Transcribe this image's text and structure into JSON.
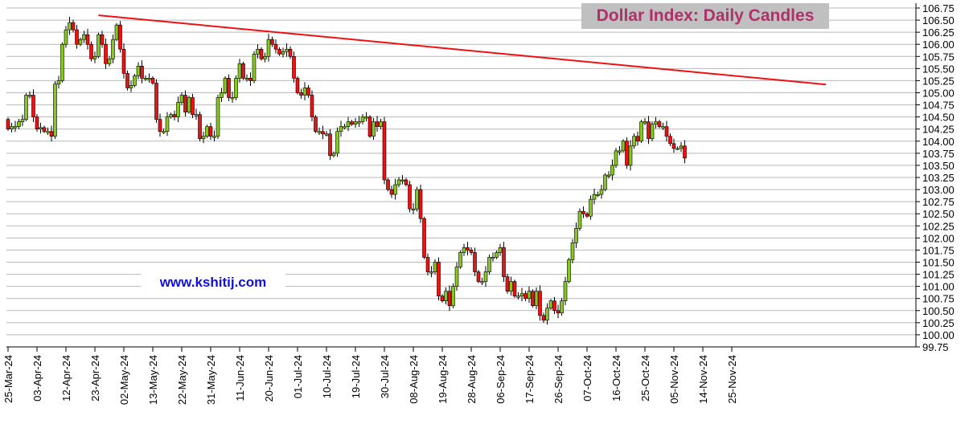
{
  "chart_data": {
    "type": "candlestick",
    "title": "Dollar Index: Daily Candles",
    "watermark": "www.kshitij.com",
    "x_tick_labels": [
      "25-Mar-24",
      "03-Apr-24",
      "12-Apr-24",
      "23-Apr-24",
      "02-May-24",
      "13-May-24",
      "22-May-24",
      "31-May-24",
      "11-Jun-24",
      "20-Jun-24",
      "01-Jul-24",
      "10-Jul-24",
      "19-Jul-24",
      "30-Jul-24",
      "08-Aug-24",
      "19-Aug-24",
      "28-Aug-24",
      "06-Sep-24",
      "17-Sep-24",
      "26-Sep-24",
      "07-Oct-24",
      "16-Oct-24",
      "25-Oct-24",
      "05-Nov-24",
      "14-Nov-24",
      "25-Nov-24"
    ],
    "y_tick_labels": [
      "106.75",
      "106.50",
      "106.25",
      "106.00",
      "105.75",
      "105.50",
      "105.25",
      "105.00",
      "104.75",
      "104.50",
      "104.25",
      "104.00",
      "103.75",
      "103.50",
      "103.25",
      "103.00",
      "102.75",
      "102.50",
      "102.25",
      "102.00",
      "101.75",
      "101.50",
      "101.25",
      "101.00",
      "100.75",
      "100.50",
      "100.25",
      "100.00",
      "99.75"
    ],
    "ylim": [
      99.75,
      106.75
    ],
    "y_scale": "linear",
    "grid": "horizontal",
    "y_axis_side": "right",
    "colors": {
      "up": "#86c91e",
      "down": "#ee1111",
      "trendline": "#ee1111",
      "grid": "#b9b9b9",
      "title_bg": "#c0c0c0",
      "title_text": "#b0306a",
      "watermark_text": "#1010d8"
    },
    "trendline": {
      "start_index": 25,
      "start_value": 106.6,
      "end_index": 226,
      "end_value": 105.17
    },
    "closes": [
      104.25,
      104.3,
      104.3,
      104.4,
      104.45,
      104.95,
      104.95,
      104.5,
      104.25,
      104.28,
      104.2,
      104.2,
      104.1,
      105.18,
      105.25,
      106.0,
      106.3,
      106.45,
      106.3,
      106.0,
      106.1,
      106.2,
      106.0,
      105.7,
      105.75,
      106.2,
      106.0,
      105.6,
      105.7,
      106.1,
      106.4,
      105.9,
      105.4,
      105.1,
      105.15,
      105.35,
      105.55,
      105.3,
      105.3,
      105.3,
      105.2,
      104.45,
      104.2,
      104.2,
      104.5,
      104.55,
      104.5,
      104.8,
      104.95,
      104.6,
      104.9,
      104.55,
      104.55,
      104.05,
      104.1,
      104.3,
      104.1,
      104.1,
      104.9,
      105.0,
      105.3,
      104.9,
      104.9,
      105.3,
      105.6,
      105.3,
      105.3,
      105.25,
      105.8,
      105.9,
      105.7,
      105.75,
      106.1,
      106.0,
      105.9,
      105.8,
      105.85,
      105.9,
      105.75,
      105.3,
      105.0,
      104.95,
      105.1,
      104.95,
      104.5,
      104.2,
      104.2,
      104.15,
      104.15,
      103.7,
      103.75,
      104.2,
      104.3,
      104.3,
      104.4,
      104.35,
      104.4,
      104.4,
      104.5,
      104.5,
      104.1,
      104.4,
      104.3,
      104.4,
      103.2,
      103.0,
      102.9,
      103.1,
      103.2,
      103.2,
      103.1,
      102.6,
      102.6,
      103.0,
      102.4,
      101.6,
      101.3,
      101.3,
      101.5,
      100.8,
      100.7,
      100.9,
      100.6,
      101.0,
      101.4,
      101.7,
      101.8,
      101.75,
      101.7,
      101.3,
      101.1,
      101.1,
      101.3,
      101.6,
      101.6,
      101.7,
      101.8,
      101.2,
      100.9,
      101.1,
      100.8,
      100.8,
      100.85,
      100.75,
      100.9,
      100.6,
      100.9,
      100.4,
      100.3,
      100.55,
      100.7,
      100.5,
      100.45,
      100.7,
      101.1,
      101.55,
      101.9,
      102.2,
      102.55,
      102.5,
      102.45,
      102.8,
      102.9,
      102.9,
      103.0,
      103.3,
      103.3,
      103.5,
      103.8,
      103.8,
      104.0,
      103.5,
      103.9,
      104.1,
      104.0,
      104.4,
      104.4,
      104.05,
      104.35,
      104.4,
      104.3,
      104.3,
      104.1,
      103.95,
      103.85,
      103.85,
      103.9,
      103.65
    ],
    "opens": [
      104.45,
      104.25,
      104.3,
      104.3,
      104.4,
      104.45,
      104.95,
      104.95,
      104.5,
      104.25,
      104.28,
      104.2,
      104.2,
      104.1,
      105.18,
      105.25,
      106.0,
      106.3,
      106.45,
      106.3,
      106.0,
      106.1,
      106.2,
      106.0,
      105.7,
      105.75,
      106.2,
      106.0,
      105.6,
      105.7,
      106.1,
      106.4,
      105.9,
      105.4,
      105.1,
      105.15,
      105.35,
      105.55,
      105.3,
      105.3,
      105.3,
      105.2,
      104.45,
      104.2,
      104.2,
      104.5,
      104.55,
      104.5,
      104.8,
      104.95,
      104.6,
      104.9,
      104.55,
      104.55,
      104.05,
      104.1,
      104.3,
      104.1,
      104.1,
      104.9,
      105.0,
      105.3,
      104.9,
      104.9,
      105.3,
      105.6,
      105.3,
      105.3,
      105.25,
      105.8,
      105.9,
      105.7,
      105.75,
      106.1,
      106.0,
      105.9,
      105.8,
      105.85,
      105.9,
      105.75,
      105.3,
      105.0,
      104.95,
      105.1,
      104.95,
      104.5,
      104.2,
      104.2,
      104.15,
      104.15,
      103.7,
      103.75,
      104.2,
      104.3,
      104.3,
      104.4,
      104.35,
      104.4,
      104.4,
      104.5,
      104.5,
      104.1,
      104.4,
      104.3,
      104.4,
      103.2,
      103.0,
      102.9,
      103.1,
      103.2,
      103.2,
      103.1,
      102.6,
      102.6,
      103.0,
      102.4,
      101.6,
      101.3,
      101.3,
      101.5,
      100.8,
      100.7,
      100.9,
      100.6,
      101.0,
      101.4,
      101.7,
      101.8,
      101.75,
      101.7,
      101.3,
      101.1,
      101.1,
      101.3,
      101.6,
      101.6,
      101.7,
      101.8,
      101.2,
      100.9,
      101.1,
      100.8,
      100.8,
      100.85,
      100.75,
      100.9,
      100.6,
      100.9,
      100.4,
      100.3,
      100.55,
      100.7,
      100.5,
      100.45,
      100.7,
      101.1,
      101.55,
      101.9,
      102.2,
      102.55,
      102.5,
      102.45,
      102.8,
      102.9,
      102.9,
      103.0,
      103.3,
      103.3,
      103.5,
      103.8,
      103.8,
      104.0,
      103.5,
      103.9,
      104.1,
      104.0,
      104.4,
      104.4,
      104.05,
      104.35,
      104.4,
      104.3,
      104.3,
      104.1,
      103.95,
      103.85,
      103.85,
      103.9
    ]
  }
}
